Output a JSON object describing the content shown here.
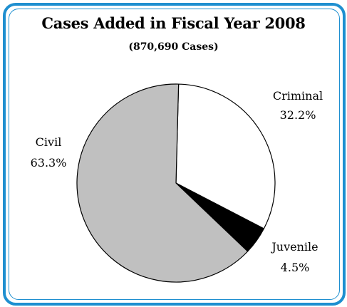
{
  "chart_data": {
    "type": "pie",
    "title": "Cases Added in Fiscal Year 2008",
    "subtitle": "(870,690 Cases)",
    "slices": [
      {
        "label": "Criminal",
        "value": 32.2,
        "value_label": "32.2%",
        "color": "#ffffff"
      },
      {
        "label": "Juvenile",
        "value": 4.5,
        "value_label": "4.5%",
        "color": "#000000"
      },
      {
        "label": "Civil",
        "value": 63.3,
        "value_label": "63.3%",
        "color": "#c0c0c0"
      }
    ],
    "frame_color": "#1e8fd0"
  }
}
